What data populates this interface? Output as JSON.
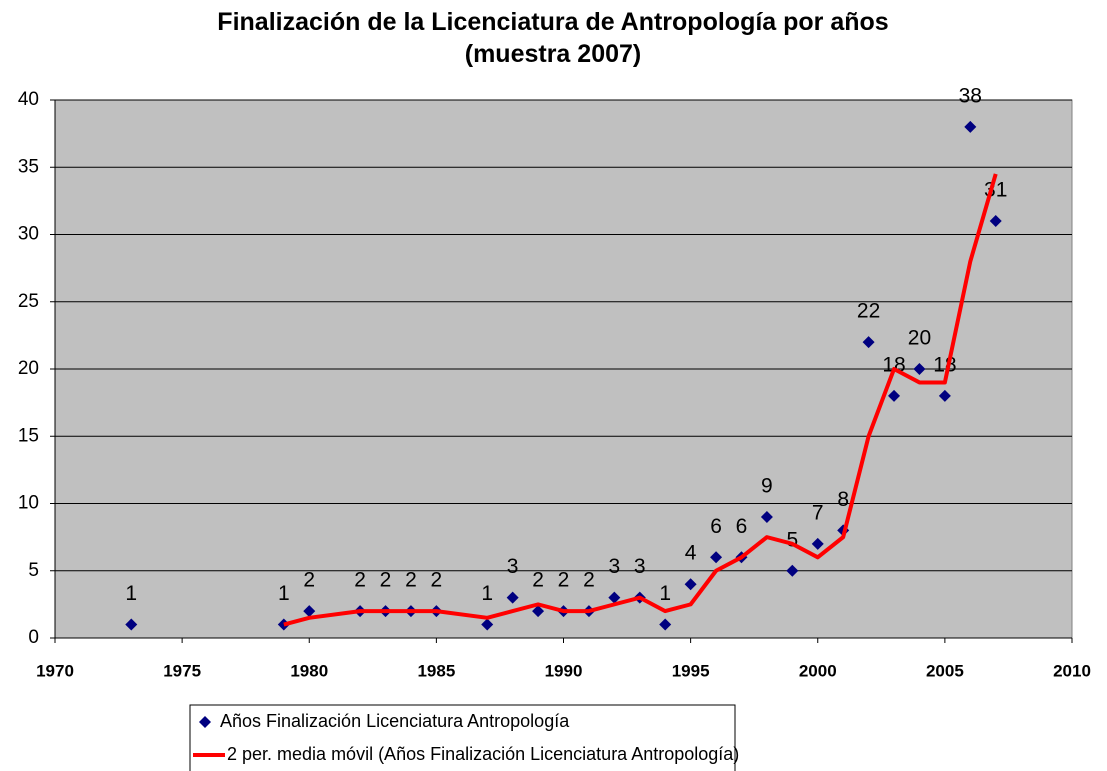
{
  "chart_data": {
    "type": "scatter",
    "title": "Finalización de la Licenciatura de Antropología por años (muestra 2007)",
    "xlim": [
      1970,
      2010
    ],
    "xticks": [
      1970,
      1975,
      1980,
      1985,
      1990,
      1995,
      2000,
      2005,
      2010
    ],
    "ylim": [
      0,
      40
    ],
    "yticks": [
      0,
      5,
      10,
      15,
      20,
      25,
      30,
      35,
      40
    ],
    "grid": true,
    "background": "#c0c0c0",
    "series": [
      {
        "name": "Años Finalización Licenciatura Antropología",
        "color": "#000080",
        "marker": "diamond",
        "x": [
          1973,
          1979,
          1980,
          1982,
          1983,
          1984,
          1985,
          1987,
          1988,
          1989,
          1990,
          1991,
          1992,
          1993,
          1994,
          1995,
          1996,
          1997,
          1998,
          1999,
          2000,
          2001,
          2002,
          2003,
          2004,
          2005,
          2006,
          2007
        ],
        "values": [
          1,
          1,
          2,
          2,
          2,
          2,
          2,
          1,
          3,
          2,
          2,
          2,
          3,
          3,
          1,
          4,
          6,
          6,
          9,
          5,
          7,
          8,
          22,
          18,
          20,
          18,
          38,
          31
        ]
      },
      {
        "name": "2 per. media móvil (Años Finalización Licenciatura Antropología)",
        "color": "#ff0000",
        "type": "line",
        "x": [
          1979,
          1980,
          1982,
          1983,
          1984,
          1985,
          1987,
          1988,
          1989,
          1990,
          1991,
          1992,
          1993,
          1994,
          1995,
          1996,
          1997,
          1998,
          1999,
          2000,
          2001,
          2002,
          2003,
          2004,
          2005,
          2006,
          2007
        ],
        "values": [
          1,
          1.5,
          2,
          2,
          2,
          2,
          1.5,
          2,
          2.5,
          2,
          2,
          2.5,
          3,
          2,
          2.5,
          5,
          6,
          7.5,
          7,
          6,
          7.5,
          15,
          20,
          19,
          19,
          28,
          34.5
        ]
      }
    ]
  }
}
